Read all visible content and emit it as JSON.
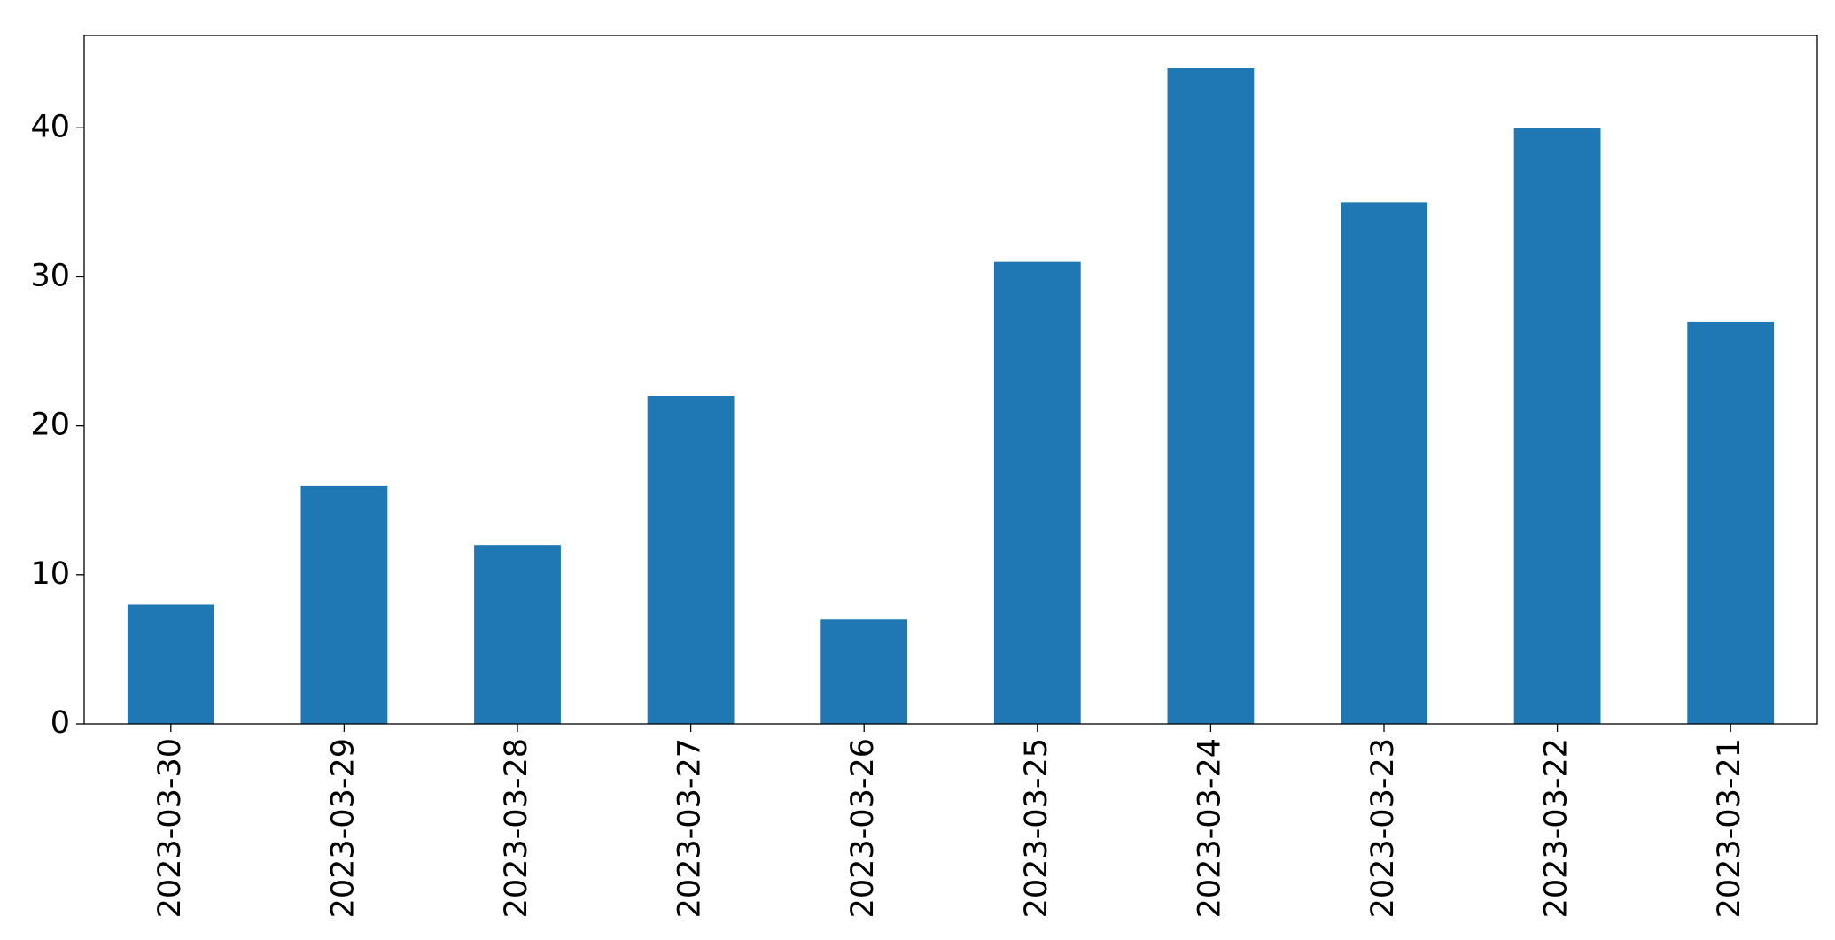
{
  "chart_data": {
    "type": "bar",
    "categories": [
      "2023-03-30",
      "2023-03-29",
      "2023-03-28",
      "2023-03-27",
      "2023-03-26",
      "2023-03-25",
      "2023-03-24",
      "2023-03-23",
      "2023-03-22",
      "2023-03-21"
    ],
    "values": [
      8,
      16,
      12,
      22,
      7,
      31,
      44,
      35,
      40,
      27
    ],
    "color": "#1f77b4",
    "ylim": [
      0,
      46.2
    ],
    "yticks": [
      0,
      10,
      20,
      30,
      40
    ],
    "grid": false
  }
}
